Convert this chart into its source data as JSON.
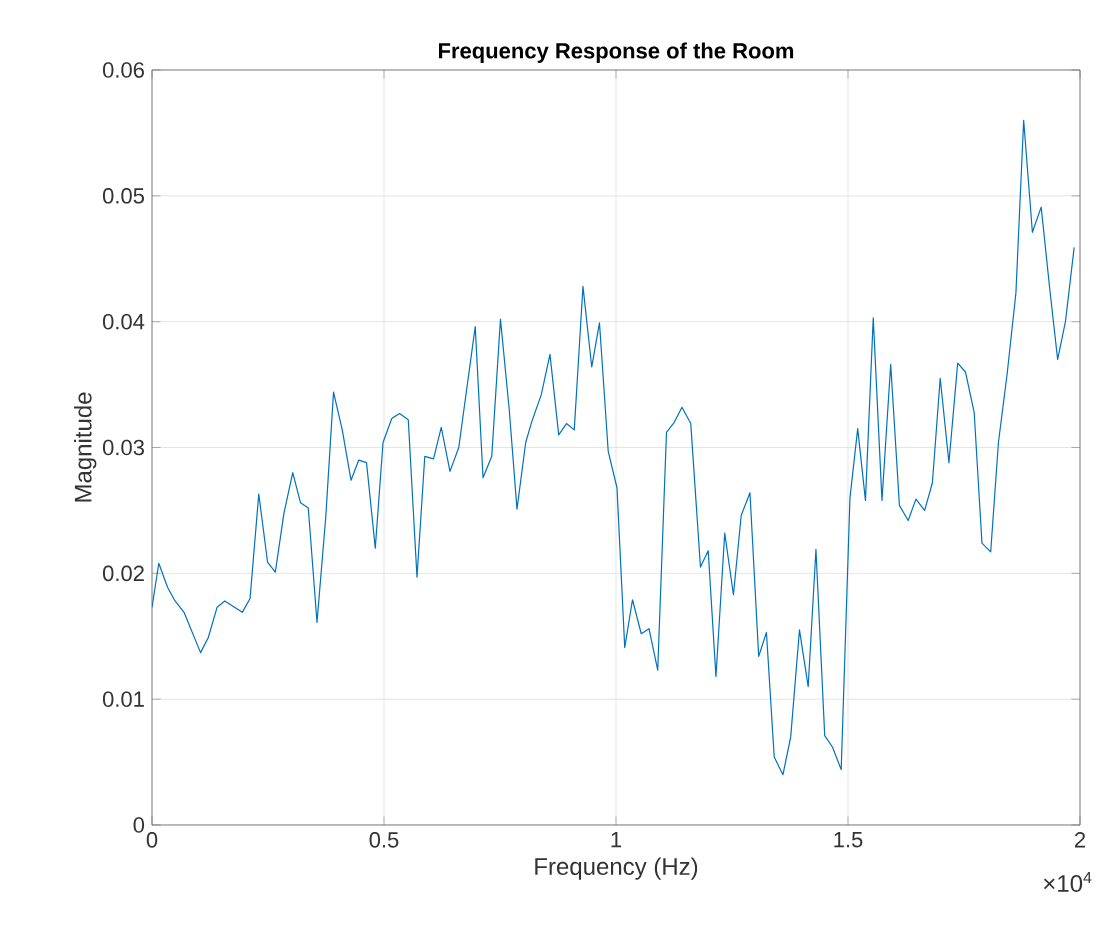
{
  "chart_data": {
    "type": "line",
    "title": "Frequency Response of the Room",
    "xlabel": "Frequency (Hz)",
    "ylabel": "Magnitude",
    "annotations": [
      "×10$^{4}$"
    ],
    "xlim": [
      0,
      2
    ],
    "ylim": [
      0,
      0.06
    ],
    "xticks": [
      0,
      0.5,
      1,
      1.5,
      2
    ],
    "yticks": [
      0,
      0.01,
      0.02,
      0.03,
      0.04,
      0.05,
      0.06
    ],
    "grid": true,
    "series": [
      {
        "color": "#0072bd",
        "x": [
          0,
          0.0146,
          0.0335,
          0.0481,
          0.069,
          0.1046,
          0.1213,
          0.1402,
          0.1569,
          0.1946,
          0.2113,
          0.2301,
          0.249,
          0.2657,
          0.2845,
          0.3033,
          0.3201,
          0.3368,
          0.3556,
          0.3745,
          0.3912,
          0.41,
          0.4289,
          0.4456,
          0.4623,
          0.4812,
          0.4979,
          0.5167,
          0.5335,
          0.5523,
          0.5711,
          0.5879,
          0.6067,
          0.6234,
          0.6422,
          0.6611,
          0.6966,
          0.7134,
          0.7322,
          0.751,
          0.7699,
          0.7866,
          0.8054,
          0.818,
          0.8389,
          0.8577,
          0.8765,
          0.8933,
          0.91,
          0.9288,
          0.9477,
          0.9644,
          0.9832,
          1.0021,
          1.0188,
          1.0355,
          1.0544,
          1.0711,
          1.0899,
          1.1088,
          1.1255,
          1.1422,
          1.1611,
          1.182,
          1.1987,
          1.2154,
          1.2343,
          1.2531,
          1.2698,
          1.2887,
          1.3075,
          1.3242,
          1.341,
          1.3598,
          1.3765,
          1.3954,
          1.4142,
          1.4309,
          1.4498,
          1.4665,
          1.4853,
          1.5042,
          1.5209,
          1.5376,
          1.5544,
          1.5732,
          1.592,
          1.6108,
          1.6297,
          1.6464,
          1.6652,
          1.6819,
          1.6987,
          1.7175,
          1.7364,
          1.7531,
          1.7719,
          1.7887,
          1.8075,
          1.8242,
          1.8431,
          1.8619,
          1.8786,
          1.8974,
          1.9163,
          1.9351,
          1.9518,
          1.9686,
          1.9874
        ],
        "values": [
          0.0173,
          0.0208,
          0.0189,
          0.0179,
          0.0169,
          0.0137,
          0.0149,
          0.0173,
          0.0178,
          0.0169,
          0.018,
          0.0263,
          0.0209,
          0.0201,
          0.0248,
          0.028,
          0.0256,
          0.0252,
          0.0161,
          0.0245,
          0.0344,
          0.0314,
          0.0274,
          0.029,
          0.0288,
          0.022,
          0.0304,
          0.0323,
          0.0327,
          0.0322,
          0.0197,
          0.0293,
          0.0291,
          0.0316,
          0.0281,
          0.03,
          0.0396,
          0.0276,
          0.0293,
          0.0402,
          0.033,
          0.0251,
          0.0304,
          0.032,
          0.0342,
          0.0374,
          0.031,
          0.0319,
          0.0314,
          0.0428,
          0.0364,
          0.0399,
          0.0297,
          0.0268,
          0.0141,
          0.0179,
          0.0152,
          0.0156,
          0.0123,
          0.0312,
          0.032,
          0.0332,
          0.0319,
          0.0205,
          0.0218,
          0.0118,
          0.0232,
          0.0183,
          0.0246,
          0.0264,
          0.0134,
          0.0153,
          0.0054,
          0.004,
          0.007,
          0.0155,
          0.011,
          0.0219,
          0.0071,
          0.0062,
          0.0044,
          0.026,
          0.0315,
          0.0258,
          0.0403,
          0.0258,
          0.0366,
          0.0254,
          0.0242,
          0.0259,
          0.025,
          0.0272,
          0.0355,
          0.0288,
          0.0367,
          0.036,
          0.0328,
          0.0224,
          0.0217,
          0.0304,
          0.0359,
          0.0423,
          0.056,
          0.0471,
          0.0491,
          0.0425,
          0.037,
          0.04,
          0.0459
        ]
      }
    ]
  }
}
